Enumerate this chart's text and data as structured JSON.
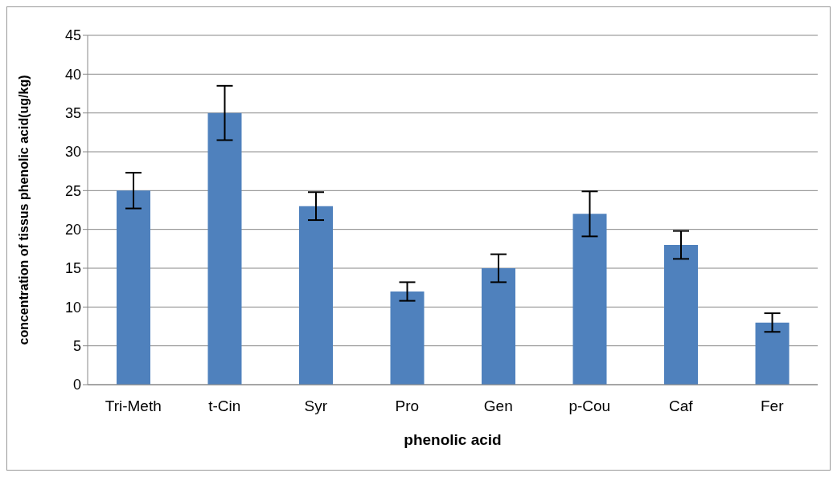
{
  "chart_data": {
    "type": "bar",
    "xlabel": "phenolic acid",
    "ylabel": "concentration of tissus phenolic acid(ug/kg)",
    "categories": [
      "Tri-Meth",
      "t-Cin",
      "Syr",
      "Pro",
      "Gen",
      "p-Cou",
      "Caf",
      "Fer"
    ],
    "values": [
      25,
      35,
      23,
      12,
      15,
      22,
      18,
      8
    ],
    "errors": [
      2.3,
      3.5,
      1.8,
      1.2,
      1.8,
      2.9,
      1.8,
      1.2
    ],
    "color": "#4f81bd",
    "ylim": [
      0,
      45
    ],
    "yticks": [
      0,
      5,
      10,
      15,
      20,
      25,
      30,
      35,
      40,
      45
    ],
    "grid": "y",
    "legend": false
  }
}
